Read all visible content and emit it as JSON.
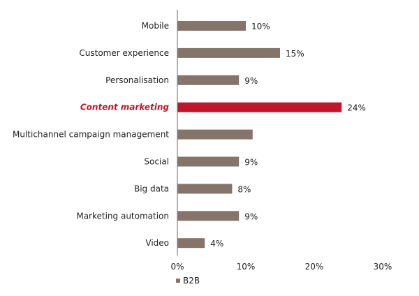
{
  "chart_data": {
    "type": "bar",
    "orientation": "horizontal",
    "categories": [
      "Mobile",
      "Customer experience",
      "Personalisation",
      "Content marketing",
      "Multichannel campaign management",
      "Social",
      "Big data",
      "Marketing automation",
      "Video"
    ],
    "series": [
      {
        "name": "B2B",
        "values": [
          10,
          15,
          9,
          24,
          11,
          9,
          8,
          9,
          4
        ],
        "color": "#857469"
      }
    ],
    "value_labels": [
      "10%",
      "15%",
      "9%",
      "24%",
      "",
      "9%",
      "8%",
      "9%",
      "4%"
    ],
    "highlight": {
      "category": "Content marketing",
      "color": "#c0162c"
    },
    "xlim": [
      0,
      30
    ],
    "xticks": [
      "0%",
      "10%",
      "20%",
      "30%"
    ],
    "grid": false,
    "legend": {
      "placement": "bottom-left",
      "entries": [
        "B2B"
      ]
    }
  }
}
